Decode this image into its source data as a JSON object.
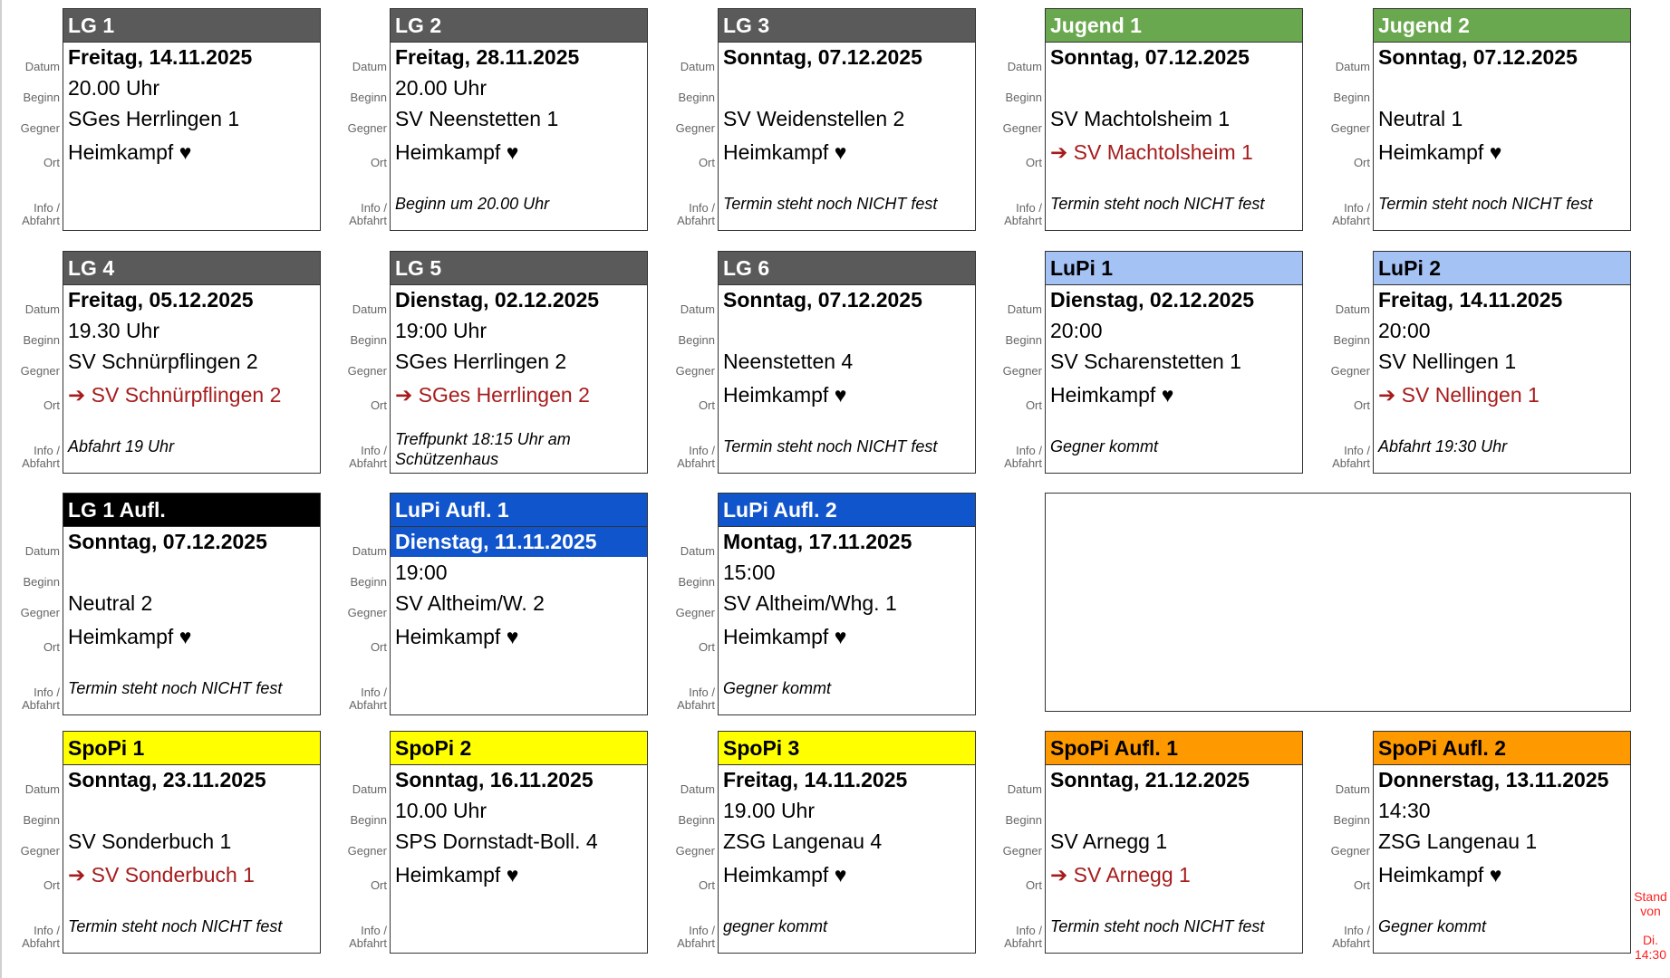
{
  "labels": {
    "datum": "Datum",
    "beginn": "Beginn",
    "gegner": "Gegner",
    "ort": "Ort",
    "info": "Info /",
    "abfahrt": "Abfahrt"
  },
  "stand": {
    "line1": "Stand",
    "line2": "von",
    "line3": "Di.",
    "line4": "14:30",
    "color": "#ff2020"
  },
  "colors": {
    "gray": "#5a5a5a",
    "green": "#6aa84f",
    "lightblue": "#a4c2f4",
    "black": "#000000",
    "blue": "#1155cc",
    "yellow": "#ffff00",
    "orange": "#ff9900",
    "away_red": "#a61c1c"
  },
  "teams": [
    {
      "title": "LG 1",
      "header_color": "gray",
      "datum": "Freitag, 14.11.2025",
      "beginn": "20.00 Uhr",
      "gegner": "SGes Herrlingen 1",
      "ort": "Heimkampf ♥",
      "away": false,
      "info": ""
    },
    {
      "title": "LG 2",
      "header_color": "gray",
      "datum": "Freitag, 28.11.2025",
      "beginn": "20.00 Uhr",
      "gegner": "SV Neenstetten 1",
      "ort": "Heimkampf ♥",
      "away": false,
      "info": "Beginn um 20.00 Uhr"
    },
    {
      "title": "LG 3",
      "header_color": "gray",
      "datum": "Sonntag, 07.12.2025",
      "beginn": "",
      "gegner": "SV Weidenstellen 2",
      "ort": "Heimkampf ♥",
      "away": false,
      "info": "Termin steht noch NICHT fest"
    },
    {
      "title": "Jugend 1",
      "header_color": "green",
      "datum": "Sonntag, 07.12.2025",
      "beginn": "",
      "gegner": "SV Machtolsheim 1",
      "ort": "➔ SV Machtolsheim 1",
      "away": true,
      "info": "Termin steht noch NICHT fest"
    },
    {
      "title": "Jugend 2",
      "header_color": "green",
      "datum": "Sonntag, 07.12.2025",
      "beginn": "",
      "gegner": "Neutral 1",
      "ort": "Heimkampf ♥",
      "away": false,
      "info": "Termin steht noch NICHT fest"
    },
    {
      "title": "LG 4",
      "header_color": "gray",
      "datum": "Freitag, 05.12.2025",
      "beginn": "19.30 Uhr",
      "gegner": "SV Schnürpflingen 2",
      "ort": "➔ SV Schnürpflingen 2",
      "away": true,
      "info": "Abfahrt 19 Uhr"
    },
    {
      "title": "LG 5",
      "header_color": "gray",
      "datum": "Dienstag, 02.12.2025",
      "beginn": "19:00 Uhr",
      "gegner": "SGes Herrlingen 2",
      "ort": "➔ SGes Herrlingen 2",
      "away": true,
      "info": "Treffpunkt 18:15 Uhr am Schützenhaus"
    },
    {
      "title": "LG 6",
      "header_color": "gray",
      "datum": "Sonntag, 07.12.2025",
      "beginn": "",
      "gegner": "Neenstetten 4",
      "ort": "Heimkampf ♥",
      "away": false,
      "info": "Termin steht noch NICHT fest"
    },
    {
      "title": "LuPi 1",
      "header_color": "lightblue",
      "header_text_dark": true,
      "datum": "Dienstag, 02.12.2025",
      "beginn": "20:00",
      "gegner": "SV Scharenstetten 1",
      "ort": "Heimkampf ♥",
      "away": false,
      "info": "Gegner kommt"
    },
    {
      "title": "LuPi 2",
      "header_color": "lightblue",
      "header_text_dark": true,
      "datum": "Freitag, 14.11.2025",
      "beginn": "20:00",
      "gegner": "SV Nellingen 1",
      "ort": "➔ SV Nellingen 1",
      "away": true,
      "info": "Abfahrt 19:30 Uhr"
    },
    {
      "title": "LG 1 Aufl.",
      "header_color": "black",
      "datum": "Sonntag, 07.12.2025",
      "beginn": "",
      "gegner": "Neutral 2",
      "ort": "Heimkampf ♥",
      "away": false,
      "info": "Termin steht noch NICHT fest"
    },
    {
      "title": "LuPi Aufl. 1",
      "header_color": "blue",
      "date_highlight": true,
      "datum": "Dienstag, 11.11.2025",
      "beginn": "19:00",
      "gegner": "SV Altheim/W. 2",
      "ort": "Heimkampf ♥",
      "away": false,
      "info": ""
    },
    {
      "title": "LuPi Aufl. 2",
      "header_color": "blue",
      "datum": "Montag, 17.11.2025",
      "beginn": "15:00",
      "gegner": "SV Altheim/Whg. 1",
      "ort": "Heimkampf ♥",
      "away": false,
      "info": "Gegner kommt"
    },
    {
      "title": "SpoPi 1",
      "header_color": "yellow",
      "header_text_dark": true,
      "datum": "Sonntag, 23.11.2025",
      "beginn": "",
      "gegner": "SV Sonderbuch 1",
      "ort": "➔ SV Sonderbuch 1",
      "away": true,
      "info": "Termin steht noch NICHT fest"
    },
    {
      "title": "SpoPi 2",
      "header_color": "yellow",
      "header_text_dark": true,
      "datum": "Sonntag, 16.11.2025",
      "beginn": "10.00 Uhr",
      "gegner": "SPS Dornstadt-Boll. 4",
      "ort": "Heimkampf ♥",
      "away": false,
      "info": ""
    },
    {
      "title": "SpoPi 3",
      "header_color": "yellow",
      "header_text_dark": true,
      "datum": "Freitag, 14.11.2025",
      "beginn": "19.00 Uhr",
      "gegner": "ZSG Langenau 4",
      "ort": "Heimkampf ♥",
      "away": false,
      "info": "gegner kommt"
    },
    {
      "title": "SpoPi Aufl. 1",
      "header_color": "orange",
      "header_text_dark": true,
      "datum": "Sonntag, 21.12.2025",
      "beginn": "",
      "gegner": "SV Arnegg 1",
      "ort": "➔ SV Arnegg 1",
      "away": true,
      "info": "Termin steht noch NICHT fest"
    },
    {
      "title": "SpoPi Aufl. 2",
      "header_color": "orange",
      "header_text_dark": true,
      "datum": "Donnerstag, 13.11.2025",
      "beginn": "14:30",
      "gegner": "ZSG Langenau 1",
      "ort": "Heimkampf ♥",
      "away": false,
      "info": "Gegner kommt"
    }
  ]
}
